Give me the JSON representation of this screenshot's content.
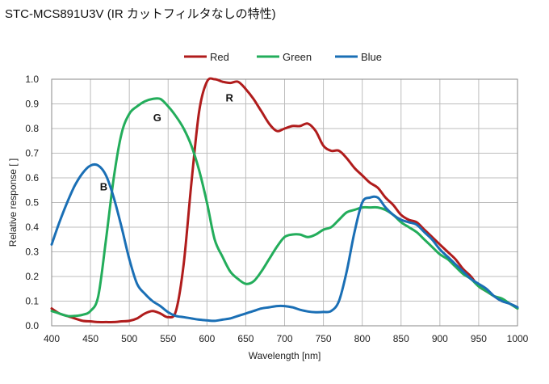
{
  "chart_data": {
    "type": "line",
    "title": "STC-MCS891U3V (IR カットフィルタなしの特性)",
    "xlabel": "Wavelength [nm]",
    "ylabel": "Relative response [ ]",
    "xlim": [
      400,
      1000
    ],
    "ylim": [
      0,
      1.0
    ],
    "x_ticks": [
      "400",
      "450",
      "500",
      "550",
      "600",
      "650",
      "700",
      "750",
      "800",
      "850",
      "900",
      "950",
      "1000"
    ],
    "y_ticks": [
      "0.0",
      "0.1",
      "0.2",
      "0.3",
      "0.4",
      "0.5",
      "0.6",
      "0.7",
      "0.8",
      "0.9",
      "1.0"
    ],
    "grid": true,
    "legend_position": "top",
    "series": [
      {
        "name": "Red",
        "color": "#b01c1c",
        "x": [
          400,
          410,
          420,
          430,
          440,
          450,
          460,
          470,
          480,
          490,
          500,
          510,
          520,
          530,
          540,
          550,
          560,
          570,
          580,
          590,
          600,
          610,
          620,
          630,
          640,
          650,
          660,
          670,
          680,
          690,
          700,
          710,
          720,
          730,
          740,
          750,
          760,
          770,
          780,
          790,
          800,
          810,
          820,
          830,
          840,
          850,
          860,
          870,
          880,
          890,
          900,
          910,
          920,
          930,
          940,
          950,
          960,
          970,
          980,
          990,
          1000
        ],
        "y": [
          0.07,
          0.05,
          0.04,
          0.03,
          0.02,
          0.018,
          0.015,
          0.015,
          0.015,
          0.018,
          0.02,
          0.03,
          0.05,
          0.06,
          0.05,
          0.035,
          0.06,
          0.25,
          0.58,
          0.87,
          0.99,
          1.0,
          0.99,
          0.985,
          0.99,
          0.96,
          0.92,
          0.87,
          0.82,
          0.79,
          0.8,
          0.81,
          0.81,
          0.82,
          0.79,
          0.73,
          0.71,
          0.71,
          0.68,
          0.64,
          0.61,
          0.58,
          0.56,
          0.52,
          0.49,
          0.45,
          0.43,
          0.42,
          0.39,
          0.36,
          0.33,
          0.3,
          0.27,
          0.23,
          0.2,
          0.16,
          0.14,
          0.12,
          0.1,
          0.09,
          0.07
        ]
      },
      {
        "name": "Green",
        "color": "#23ad5b",
        "x": [
          400,
          410,
          420,
          430,
          440,
          450,
          460,
          470,
          480,
          490,
          500,
          510,
          520,
          530,
          540,
          550,
          560,
          570,
          580,
          590,
          600,
          610,
          620,
          630,
          640,
          650,
          660,
          670,
          680,
          690,
          700,
          710,
          720,
          730,
          740,
          750,
          760,
          770,
          780,
          790,
          800,
          810,
          820,
          830,
          840,
          850,
          860,
          870,
          880,
          890,
          900,
          910,
          920,
          930,
          940,
          950,
          960,
          970,
          980,
          990,
          1000
        ],
        "y": [
          0.06,
          0.05,
          0.04,
          0.04,
          0.045,
          0.06,
          0.12,
          0.35,
          0.6,
          0.78,
          0.86,
          0.89,
          0.91,
          0.92,
          0.92,
          0.89,
          0.85,
          0.8,
          0.73,
          0.63,
          0.5,
          0.35,
          0.28,
          0.22,
          0.19,
          0.17,
          0.18,
          0.22,
          0.27,
          0.32,
          0.36,
          0.37,
          0.37,
          0.36,
          0.37,
          0.39,
          0.4,
          0.43,
          0.46,
          0.47,
          0.48,
          0.48,
          0.48,
          0.47,
          0.45,
          0.42,
          0.4,
          0.38,
          0.35,
          0.32,
          0.29,
          0.27,
          0.24,
          0.21,
          0.19,
          0.16,
          0.14,
          0.12,
          0.11,
          0.09,
          0.07
        ]
      },
      {
        "name": "Blue",
        "color": "#1a6fb5",
        "x": [
          400,
          410,
          420,
          430,
          440,
          450,
          460,
          470,
          480,
          490,
          500,
          510,
          520,
          530,
          540,
          550,
          560,
          570,
          580,
          590,
          600,
          610,
          620,
          630,
          640,
          650,
          660,
          670,
          680,
          690,
          700,
          710,
          720,
          730,
          740,
          750,
          760,
          770,
          780,
          790,
          800,
          810,
          820,
          830,
          840,
          850,
          860,
          870,
          880,
          890,
          900,
          910,
          920,
          930,
          940,
          950,
          960,
          970,
          980,
          990,
          1000
        ],
        "y": [
          0.33,
          0.42,
          0.5,
          0.57,
          0.62,
          0.65,
          0.65,
          0.61,
          0.52,
          0.4,
          0.27,
          0.17,
          0.13,
          0.1,
          0.08,
          0.055,
          0.04,
          0.035,
          0.03,
          0.025,
          0.022,
          0.02,
          0.025,
          0.03,
          0.04,
          0.05,
          0.06,
          0.07,
          0.075,
          0.08,
          0.08,
          0.075,
          0.065,
          0.058,
          0.055,
          0.056,
          0.06,
          0.1,
          0.22,
          0.38,
          0.5,
          0.52,
          0.52,
          0.48,
          0.45,
          0.43,
          0.42,
          0.41,
          0.38,
          0.35,
          0.31,
          0.28,
          0.25,
          0.22,
          0.19,
          0.17,
          0.15,
          0.12,
          0.1,
          0.09,
          0.075
        ]
      }
    ],
    "annotations": [
      {
        "text": "R",
        "x": 629,
        "y": 0.91
      },
      {
        "text": "G",
        "x": 536,
        "y": 0.83
      },
      {
        "text": "B",
        "x": 467,
        "y": 0.55
      }
    ]
  }
}
